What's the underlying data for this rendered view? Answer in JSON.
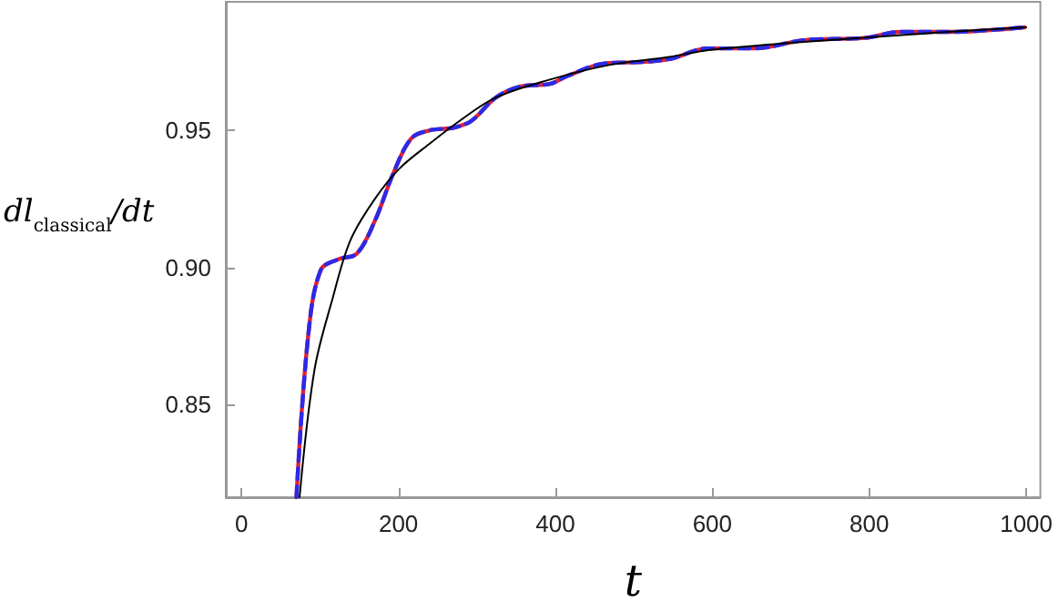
{
  "chart_data": {
    "type": "line",
    "xlabel": "t",
    "ylabel": "dl$_{classical}$/dt",
    "xlim": [
      -20,
      1018
    ],
    "ylim": [
      0.816,
      0.997
    ],
    "xticks": [
      0,
      200,
      400,
      600,
      800,
      1000
    ],
    "yticks": [
      {
        "value": 0.85,
        "label": "0.85"
      },
      {
        "value": 0.9,
        "label": "0.90"
      },
      {
        "value": 0.95,
        "label": "0.95"
      }
    ],
    "grid": false,
    "marker": "none",
    "series": [
      {
        "color": "#e8202a",
        "line_style": "solid",
        "x": [
          70,
          85,
          101,
          124,
          147,
          170,
          193,
          216,
          239,
          270,
          293,
          324,
          355,
          393,
          416,
          463,
          509,
          547,
          594,
          655,
          717,
          794,
          840,
          901,
          998
        ],
        "values": [
          0.816,
          0.875,
          0.899,
          0.903,
          0.905,
          0.917,
          0.934,
          0.947,
          0.95,
          0.951,
          0.9535,
          0.962,
          0.966,
          0.967,
          0.97,
          0.9745,
          0.975,
          0.9762,
          0.98,
          0.98,
          0.983,
          0.9838,
          0.986,
          0.986,
          0.9877
        ]
      },
      {
        "color": "#2a2ae8",
        "line_style": "dashed",
        "x": [
          70,
          85,
          101,
          124,
          147,
          170,
          193,
          216,
          239,
          270,
          293,
          324,
          355,
          393,
          416,
          463,
          509,
          547,
          594,
          655,
          717,
          794,
          840,
          901,
          998
        ],
        "values": [
          0.816,
          0.875,
          0.899,
          0.903,
          0.905,
          0.917,
          0.934,
          0.947,
          0.95,
          0.951,
          0.9535,
          0.962,
          0.966,
          0.967,
          0.97,
          0.9745,
          0.975,
          0.9762,
          0.98,
          0.98,
          0.983,
          0.9838,
          0.986,
          0.986,
          0.9877
        ]
      },
      {
        "color": "#000000",
        "line_style": "solid",
        "x": [
          74,
          93,
          116,
          139,
          170,
          201,
          239,
          278,
          324,
          393,
          470,
          543,
          600,
          700,
          800,
          900,
          1000
        ],
        "values": [
          0.816,
          0.8625,
          0.8885,
          0.91,
          0.925,
          0.936,
          0.945,
          0.9535,
          0.962,
          0.9686,
          0.974,
          0.9768,
          0.9795,
          0.982,
          0.984,
          0.986,
          0.9877
        ]
      }
    ]
  }
}
